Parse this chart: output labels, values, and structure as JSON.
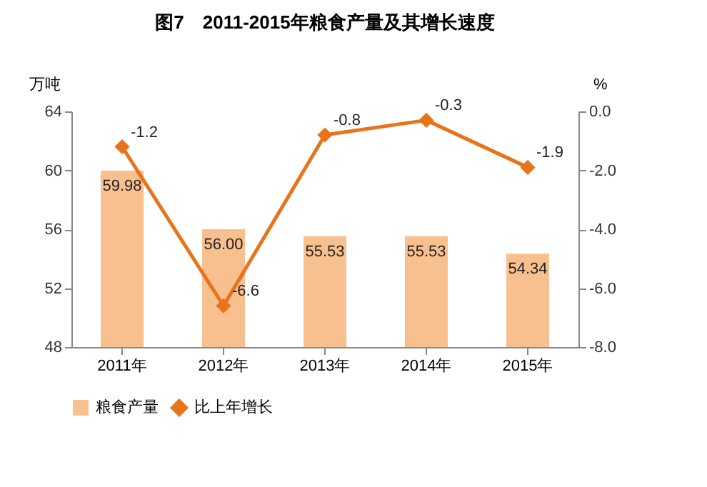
{
  "chart_data": {
    "type": "bar",
    "title": "图7　2011-2015年粮食产量及其增长速度",
    "ylabel": "万吨",
    "y2label": "%",
    "categories": [
      "2011年",
      "2012年",
      "2013年",
      "2014年",
      "2015年"
    ],
    "series": [
      {
        "name": "粮食产量",
        "color": "#f9c08f",
        "values": [
          59.98,
          56.0,
          55.53,
          55.53,
          54.34
        ],
        "value_labels": [
          "59.98",
          "56.00",
          "55.53",
          "55.53",
          "54.34"
        ]
      },
      {
        "name": "比上年增长",
        "type": "line",
        "axis": "y2",
        "color": "#e8731a",
        "values": [
          -1.2,
          -6.6,
          -0.8,
          -0.3,
          -1.9
        ],
        "value_labels": [
          "-1.2",
          "-6.6",
          "-0.8",
          "-0.3",
          "-1.9"
        ]
      }
    ],
    "ylim": [
      48,
      64
    ],
    "yticks": [
      48,
      52,
      56,
      60,
      64
    ],
    "y2lim": [
      -8,
      0
    ],
    "y2ticks": [
      {
        "value": -8,
        "label": "-8.0"
      },
      {
        "value": -6,
        "label": "-6.0"
      },
      {
        "value": -4,
        "label": "-4.0"
      },
      {
        "value": -2,
        "label": "-2.0"
      },
      {
        "value": 0,
        "label": "0.0"
      }
    ],
    "marker": "diamond",
    "legend": "bottom",
    "grid": false
  }
}
